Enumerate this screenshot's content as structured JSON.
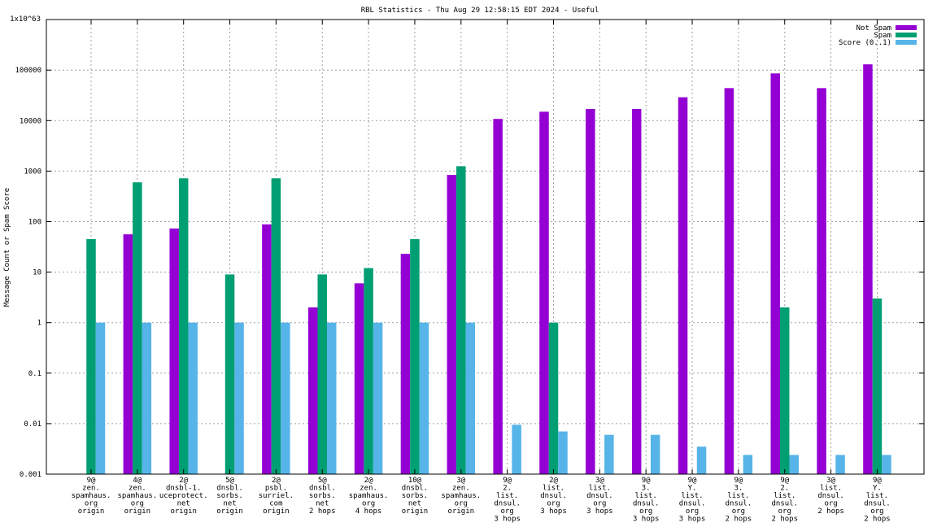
{
  "chart_data": {
    "type": "bar",
    "title": "RBL Statistics - Thu Aug 29 12:58:15 EDT 2024 - Useful",
    "ylabel": "Message Count or Spam Score",
    "yscale": "log",
    "ylim": [
      0.001,
      1e+63
    ],
    "grid": true,
    "legend_position": "top-right",
    "y_ticks": [
      "0.001",
      "0.01",
      "0.1",
      "1",
      "10",
      "100",
      "1000",
      "10000",
      "100000"
    ],
    "y_top_label": "1x10^63",
    "categories": [
      [
        "9@",
        "zen.",
        "spamhaus.",
        "org",
        "origin"
      ],
      [
        "4@",
        "zen.",
        "spamhaus.",
        "org",
        "origin"
      ],
      [
        "2@",
        "dnsbl-1.",
        "uceprotect.",
        "net",
        "origin"
      ],
      [
        "5@",
        "dnsbl.",
        "sorbs.",
        "net",
        "origin"
      ],
      [
        "2@",
        "psbl.",
        "surriel.",
        "com",
        "origin"
      ],
      [
        "5@",
        "dnsbl.",
        "sorbs.",
        "net",
        "2 hops"
      ],
      [
        "2@",
        "zen.",
        "spamhaus.",
        "org",
        "4 hops"
      ],
      [
        "10@",
        "dnsbl.",
        "sorbs.",
        "net",
        "origin"
      ],
      [
        "3@",
        "zen.",
        "spamhaus.",
        "org",
        "origin"
      ],
      [
        "9@",
        "2.",
        "list.",
        "dnsul.",
        "org",
        "3 hops"
      ],
      [
        "2@",
        "list.",
        "dnsul.",
        "org",
        "3 hops"
      ],
      [
        "3@",
        "list.",
        "dnsul.",
        "org",
        "3 hops"
      ],
      [
        "9@",
        "3.",
        "list.",
        "dnsul.",
        "org",
        "3 hops"
      ],
      [
        "9@",
        "Y.",
        "list.",
        "dnsul.",
        "org",
        "3 hops"
      ],
      [
        "9@",
        "3.",
        "list.",
        "dnsul.",
        "org",
        "2 hops"
      ],
      [
        "9@",
        "2.",
        "list.",
        "dnsul.",
        "org",
        "2 hops"
      ],
      [
        "3@",
        "list.",
        "dnsul.",
        "org",
        "2 hops"
      ],
      [
        "9@",
        "Y.",
        "list.",
        "dnsul.",
        "org",
        "2 hops"
      ]
    ],
    "series": [
      {
        "name": "Not Spam",
        "color": "#9400d3",
        "values": [
          null,
          56,
          73,
          null,
          88,
          2,
          6,
          23,
          840,
          10800,
          15000,
          17000,
          17000,
          29000,
          44000,
          86000,
          44000,
          130000
        ]
      },
      {
        "name": "Spam",
        "color": "#009e73",
        "values": [
          45,
          600,
          720,
          9,
          720,
          9,
          12,
          45,
          1250,
          null,
          1,
          null,
          null,
          null,
          null,
          2,
          null,
          3
        ]
      },
      {
        "name": "Score (0..1)",
        "color": "#56b4e9",
        "values": [
          1,
          1,
          1,
          1,
          1,
          1,
          1,
          1,
          1,
          0.0095,
          0.007,
          0.006,
          0.006,
          0.0035,
          0.0024,
          0.0024,
          0.0024,
          0.0024
        ]
      }
    ]
  }
}
